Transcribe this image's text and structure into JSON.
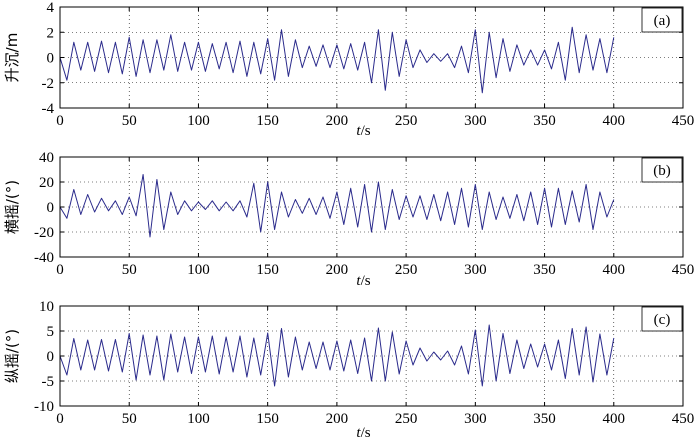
{
  "chart_data": [
    {
      "type": "line",
      "panel_label": "(a)",
      "ylabel": "升沉/m",
      "xlabel_var": "t",
      "xlabel_unit": "/s",
      "xlim": [
        0,
        450
      ],
      "ylim": [
        -4,
        4
      ],
      "xticks": [
        "0",
        "50",
        "100",
        "150",
        "200",
        "250",
        "300",
        "350",
        "400",
        "450"
      ],
      "yticks": [
        "4",
        "2",
        "0",
        "-2",
        "-4"
      ],
      "grid": true,
      "series": [
        {
          "color": "#2b2b8c",
          "x": [
            0,
            5,
            10,
            15,
            20,
            25,
            30,
            35,
            40,
            45,
            50,
            55,
            60,
            65,
            70,
            75,
            80,
            85,
            90,
            95,
            100,
            105,
            110,
            115,
            120,
            125,
            130,
            135,
            140,
            145,
            150,
            155,
            160,
            165,
            170,
            175,
            180,
            185,
            190,
            195,
            200,
            205,
            210,
            215,
            220,
            225,
            230,
            235,
            240,
            245,
            250,
            255,
            260,
            265,
            270,
            275,
            280,
            285,
            290,
            295,
            300,
            305,
            310,
            315,
            320,
            325,
            330,
            335,
            340,
            345,
            350,
            355,
            360,
            365,
            370,
            375,
            380,
            385,
            390,
            395,
            400
          ],
          "y": [
            0,
            -1.8,
            1.2,
            -1.0,
            1.2,
            -1.1,
            1.3,
            -1.2,
            1.2,
            -1.3,
            1.6,
            -1.5,
            1.4,
            -1.2,
            1.4,
            -1.0,
            1.8,
            -1.1,
            1.2,
            -1.0,
            1.2,
            -1.1,
            1.1,
            -0.9,
            1.2,
            -1.2,
            1.3,
            -1.5,
            1.2,
            -1.3,
            1.5,
            -1.8,
            2.2,
            -1.5,
            1.4,
            -0.8,
            0.9,
            -0.7,
            1.0,
            -0.8,
            1.0,
            -0.9,
            1.1,
            -1.0,
            1.2,
            -2.0,
            2.2,
            -2.6,
            2.0,
            -1.5,
            1.4,
            -0.8,
            0.6,
            -0.4,
            0.3,
            -0.3,
            0.3,
            -0.8,
            0.9,
            -1.2,
            2.2,
            -2.8,
            2.0,
            -1.6,
            1.5,
            -1.1,
            1.0,
            -0.6,
            0.6,
            -0.6,
            0.6,
            -0.9,
            1.2,
            -1.8,
            2.4,
            -1.2,
            1.8,
            -1.0,
            1.5,
            -1.2,
            1.6
          ]
        }
      ]
    },
    {
      "type": "line",
      "panel_label": "(b)",
      "ylabel": "横摇/(°)",
      "xlabel_var": "t",
      "xlabel_unit": "/s",
      "xlim": [
        0,
        450
      ],
      "ylim": [
        -40,
        40
      ],
      "xticks": [
        "0",
        "50",
        "100",
        "150",
        "200",
        "250",
        "300",
        "350",
        "400",
        "450"
      ],
      "yticks": [
        "40",
        "20",
        "0",
        "-20",
        "-40"
      ],
      "grid": true,
      "series": [
        {
          "color": "#2b2b8c",
          "x": [
            0,
            5,
            10,
            15,
            20,
            25,
            30,
            35,
            40,
            45,
            50,
            55,
            60,
            65,
            70,
            75,
            80,
            85,
            90,
            95,
            100,
            105,
            110,
            115,
            120,
            125,
            130,
            135,
            140,
            145,
            150,
            155,
            160,
            165,
            170,
            175,
            180,
            185,
            190,
            195,
            200,
            205,
            210,
            215,
            220,
            225,
            230,
            235,
            240,
            245,
            250,
            255,
            260,
            265,
            270,
            275,
            280,
            285,
            290,
            295,
            300,
            305,
            310,
            315,
            320,
            325,
            330,
            335,
            340,
            345,
            350,
            355,
            360,
            365,
            370,
            375,
            380,
            385,
            390,
            395,
            400
          ],
          "y": [
            0,
            -9,
            14,
            -6,
            10,
            -4,
            7,
            -3,
            5,
            -6,
            8,
            -7,
            26,
            -24,
            22,
            -18,
            12,
            -6,
            5,
            -3,
            4,
            -2,
            5,
            -3,
            4,
            -3,
            5,
            -8,
            19,
            -20,
            20,
            -18,
            12,
            -8,
            6,
            -5,
            7,
            -6,
            8,
            -9,
            12,
            -14,
            15,
            -16,
            18,
            -20,
            20,
            -18,
            14,
            -10,
            9,
            -8,
            9,
            -10,
            10,
            -11,
            12,
            -14,
            15,
            -16,
            18,
            -18,
            12,
            -10,
            8,
            -9,
            10,
            -11,
            12,
            -14,
            15,
            -16,
            15,
            -14,
            13,
            -12,
            18,
            -18,
            12,
            -8,
            6
          ]
        }
      ]
    },
    {
      "type": "line",
      "panel_label": "(c)",
      "ylabel": "纵摇/(°)",
      "xlabel_var": "t",
      "xlabel_unit": "/s",
      "xlim": [
        0,
        450
      ],
      "ylim": [
        -10,
        10
      ],
      "xticks": [
        "0",
        "50",
        "100",
        "150",
        "200",
        "250",
        "300",
        "350",
        "400",
        "450"
      ],
      "yticks": [
        "10",
        "5",
        "0",
        "-5",
        "-10"
      ],
      "grid": true,
      "series": [
        {
          "color": "#2b2b8c",
          "x": [
            0,
            5,
            10,
            15,
            20,
            25,
            30,
            35,
            40,
            45,
            50,
            55,
            60,
            65,
            70,
            75,
            80,
            85,
            90,
            95,
            100,
            105,
            110,
            115,
            120,
            125,
            130,
            135,
            140,
            145,
            150,
            155,
            160,
            165,
            170,
            175,
            180,
            185,
            190,
            195,
            200,
            205,
            210,
            215,
            220,
            225,
            230,
            235,
            240,
            245,
            250,
            255,
            260,
            265,
            270,
            275,
            280,
            285,
            290,
            295,
            300,
            305,
            310,
            315,
            320,
            325,
            330,
            335,
            340,
            345,
            350,
            355,
            360,
            365,
            370,
            375,
            380,
            385,
            390,
            395,
            400
          ],
          "y": [
            0,
            -3.8,
            3.5,
            -2.8,
            3.2,
            -2.8,
            3.3,
            -3.0,
            3.3,
            -3.2,
            4.5,
            -4.8,
            4.2,
            -3.8,
            4.0,
            -4.8,
            4.4,
            -3.2,
            3.8,
            -3.5,
            3.8,
            -3.2,
            4.0,
            -3.6,
            3.8,
            -3.2,
            4.0,
            -4.2,
            3.6,
            -3.8,
            4.6,
            -6.0,
            5.5,
            -4.2,
            3.8,
            -2.8,
            2.8,
            -2.5,
            2.8,
            -2.8,
            3.0,
            -3.0,
            3.2,
            -3.5,
            3.6,
            -5.0,
            5.6,
            -5.0,
            4.8,
            -3.6,
            3.0,
            -1.8,
            1.6,
            -1.0,
            0.8,
            -0.8,
            1.0,
            -1.8,
            2.0,
            -3.6,
            5.2,
            -6.0,
            6.2,
            -5.0,
            4.5,
            -3.5,
            3.2,
            -2.5,
            2.4,
            -2.2,
            2.4,
            -2.8,
            3.2,
            -4.5,
            5.5,
            -3.8,
            5.8,
            -5.2,
            4.4,
            -3.8,
            3.6
          ]
        }
      ]
    }
  ]
}
